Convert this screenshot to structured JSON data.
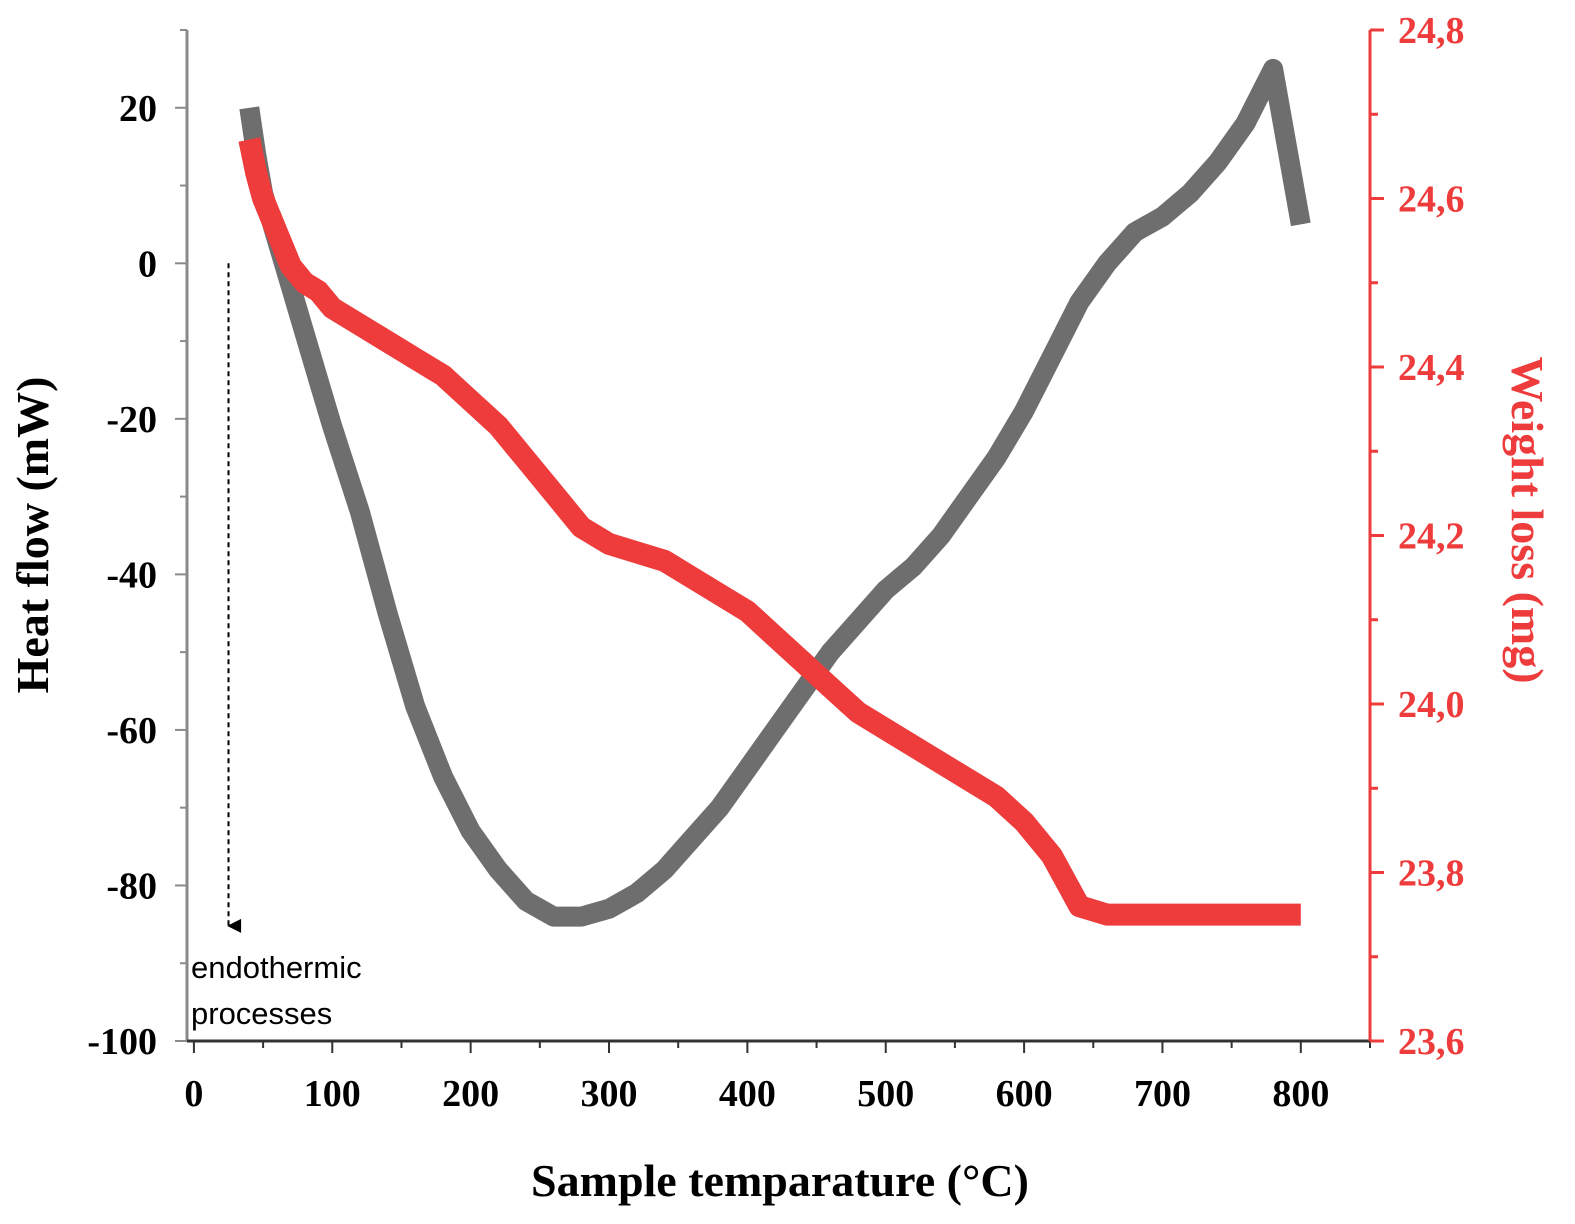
{
  "chart_data": {
    "type": "line",
    "title": "",
    "xlabel": "Sample temparature (°C)",
    "ylabel_left": "Heat flow (mW)",
    "ylabel_right": "Weight loss (mg)",
    "xlim": [
      -5,
      850
    ],
    "ylim_left": [
      -100,
      30
    ],
    "ylim_right": [
      23.6,
      24.8
    ],
    "x_ticks": [
      "0",
      "100",
      "200",
      "300",
      "400",
      "500",
      "600",
      "700",
      "800"
    ],
    "y_left_ticks": [
      "20",
      "0",
      "-20",
      "-40",
      "-60",
      "-80",
      "-100"
    ],
    "y_right_ticks": [
      "24,8",
      "24,6",
      "24,4",
      "24,2",
      "24,0",
      "23,8",
      "23,6"
    ],
    "grid": false,
    "series": [
      {
        "axis": "left",
        "color": "#6e6e6e",
        "x": [
          40,
          45,
          50,
          60,
          70,
          80,
          90,
          100,
          120,
          140,
          160,
          180,
          200,
          220,
          240,
          260,
          280,
          300,
          320,
          340,
          360,
          380,
          400,
          420,
          440,
          460,
          480,
          500,
          520,
          540,
          560,
          580,
          600,
          620,
          640,
          660,
          665,
          670,
          680,
          700,
          720,
          740,
          760,
          780,
          800
        ],
        "y": [
          20,
          14,
          9,
          3,
          -3,
          -9,
          -15,
          -21,
          -32,
          -45,
          -57,
          -66,
          -73,
          -78,
          -82,
          -84,
          -84,
          -83,
          -81,
          -78,
          -74,
          -70,
          -65,
          -60,
          -55,
          -50,
          -46,
          -42,
          -39,
          -35,
          -30,
          -25,
          -19,
          -12,
          -5,
          0,
          1,
          2,
          4,
          6,
          9,
          13,
          18,
          25,
          5
        ]
      },
      {
        "axis": "right",
        "color": "#ee3b3b",
        "x": [
          40,
          45,
          50,
          60,
          70,
          80,
          90,
          100,
          120,
          140,
          160,
          180,
          200,
          220,
          240,
          260,
          280,
          300,
          320,
          340,
          360,
          380,
          400,
          420,
          440,
          460,
          480,
          500,
          520,
          540,
          560,
          580,
          600,
          620,
          640,
          660,
          680,
          700,
          720,
          740,
          760,
          780,
          800
        ],
        "y": [
          24.67,
          24.63,
          24.6,
          24.56,
          24.52,
          24.5,
          24.49,
          24.47,
          24.45,
          24.43,
          24.41,
          24.39,
          24.36,
          24.33,
          24.29,
          24.25,
          24.21,
          24.19,
          24.18,
          24.17,
          24.15,
          24.13,
          24.11,
          24.08,
          24.05,
          24.02,
          23.99,
          23.97,
          23.95,
          23.93,
          23.91,
          23.89,
          23.86,
          23.82,
          23.76,
          23.75,
          23.75,
          23.75,
          23.75,
          23.75,
          23.75,
          23.75,
          23.75
        ]
      }
    ],
    "annotation": {
      "line1": "endothermic",
      "line2": "processes",
      "arrow_from": 0,
      "arrow_to": -87,
      "arrow_x": 25
    }
  }
}
